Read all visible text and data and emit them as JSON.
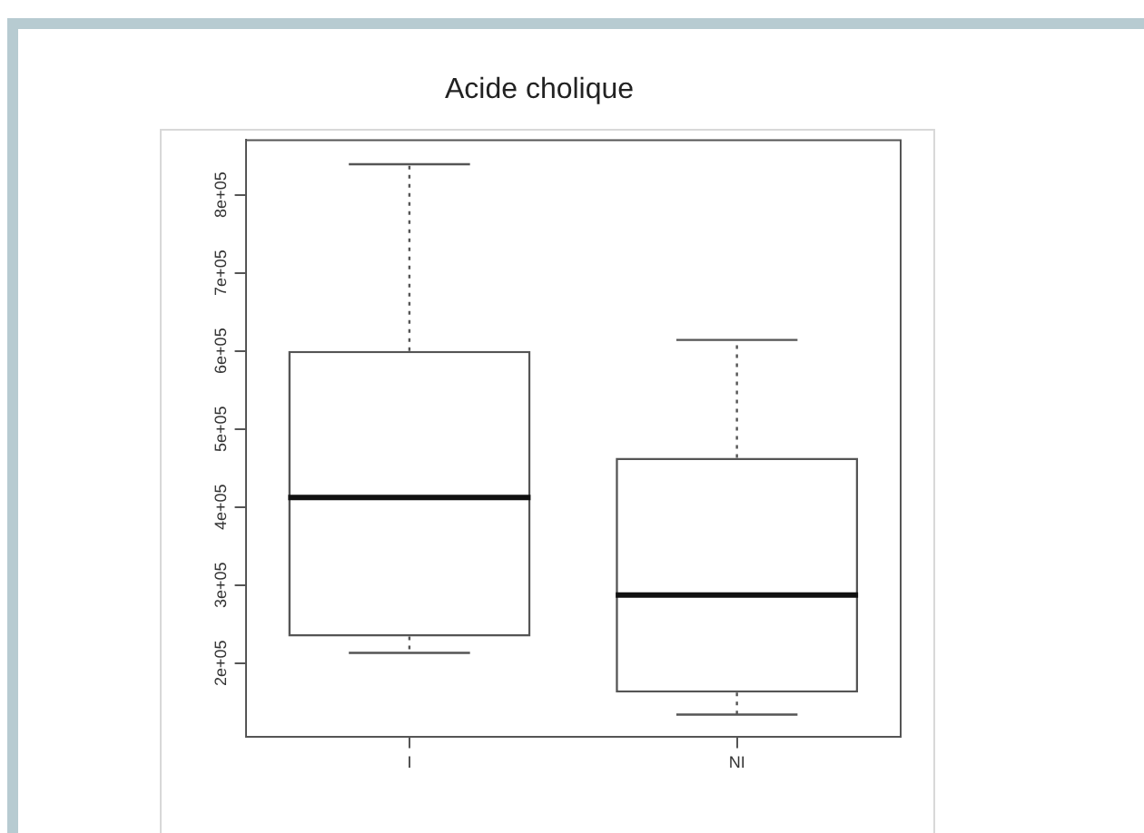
{
  "chart_data": {
    "type": "box",
    "title": "Acide cholique",
    "categories": [
      "I",
      "NI"
    ],
    "boxes": [
      {
        "low": 213000,
        "q1": 234000,
        "median": 412000,
        "q3": 600000,
        "high": 839000
      },
      {
        "low": 134000,
        "q1": 162000,
        "median": 287000,
        "q3": 463000,
        "high": 614000
      }
    ],
    "ylim": [
      105000,
      870000
    ],
    "yticks": [
      {
        "value": 200000,
        "label": "2e+05"
      },
      {
        "value": 300000,
        "label": "3e+05"
      },
      {
        "value": 400000,
        "label": "4e+05"
      },
      {
        "value": 500000,
        "label": "5e+05"
      },
      {
        "value": 600000,
        "label": "6e+05"
      },
      {
        "value": 700000,
        "label": "7e+05"
      },
      {
        "value": 800000,
        "label": "8e+05"
      }
    ],
    "grid": false
  }
}
